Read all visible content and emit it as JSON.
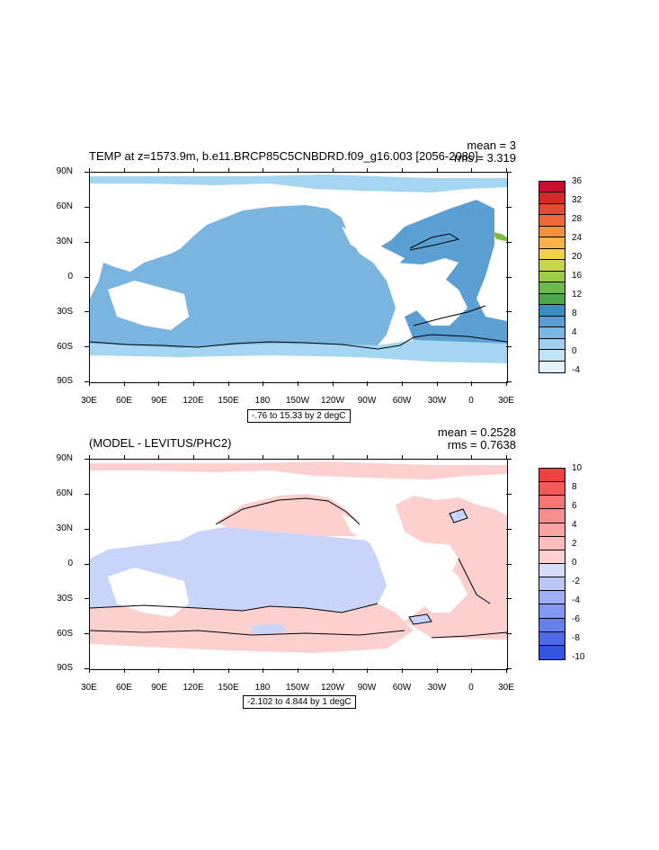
{
  "panels": [
    {
      "title": "TEMP at z=1573.9m, b.e11.BRCP85C5CNBDRD.f09_g16.003 [2056-2080]",
      "mean": "mean = 3",
      "rms": "rms = 3.319",
      "y_labels": [
        "90N",
        "60N",
        "30N",
        "0",
        "30S",
        "60S",
        "90S"
      ],
      "x_labels": [
        "30E",
        "60E",
        "90E",
        "120E",
        "150E",
        "180",
        "150W",
        "120W",
        "90W",
        "60W",
        "30W",
        "0",
        "30E"
      ],
      "range_note": "-.76 to 15.33 by 2 degC",
      "colorbar": {
        "labels": [
          "36",
          "32",
          "28",
          "24",
          "20",
          "16",
          "12",
          "8",
          "4",
          "0",
          "-4"
        ],
        "colors": [
          "#c8102e",
          "#d42a2a",
          "#e34a33",
          "#ef6a3a",
          "#f4913c",
          "#f7b24a",
          "#f3d04a",
          "#c9d64a",
          "#9ccb4a",
          "#6cbb4a",
          "#4ea54e",
          "#3d8ec0",
          "#5a9fd4",
          "#7bb7e2",
          "#9fd0f0",
          "#c2e3f5",
          "#e3f2fb"
        ]
      },
      "map_colors": {
        "main": "#7ab5df",
        "polar": "#a4d6f2",
        "mid": "#5b9fd3",
        "warm": "#7cbb3e"
      }
    },
    {
      "title": "(MODEL - LEVITUS/PHC2)",
      "mean": "mean = 0.2528",
      "rms": "rms = 0.7638",
      "y_labels": [
        "90N",
        "60N",
        "30N",
        "0",
        "30S",
        "60S",
        "90S"
      ],
      "x_labels": [
        "30E",
        "60E",
        "90E",
        "120E",
        "150E",
        "180",
        "150W",
        "120W",
        "90W",
        "60W",
        "30W",
        "0",
        "30E"
      ],
      "range_note": "-2.102 to 4.844 by 1 degC",
      "colorbar": {
        "labels": [
          "10",
          "8",
          "6",
          "4",
          "2",
          "0",
          "-2",
          "-4",
          "-6",
          "-8",
          "-10"
        ],
        "colors": [
          "#f04040",
          "#f45a5a",
          "#f77474",
          "#f98c8c",
          "#fba4a4",
          "#fcbcbc",
          "#fdd0d0",
          "#d6dcfa",
          "#bac6f6",
          "#9eaef2",
          "#8298ee",
          "#6680ea",
          "#4c6ae6",
          "#3355e2"
        ]
      },
      "map_colors": {
        "pos": "#fdd0d0",
        "neg": "#c8d4fa"
      }
    }
  ]
}
